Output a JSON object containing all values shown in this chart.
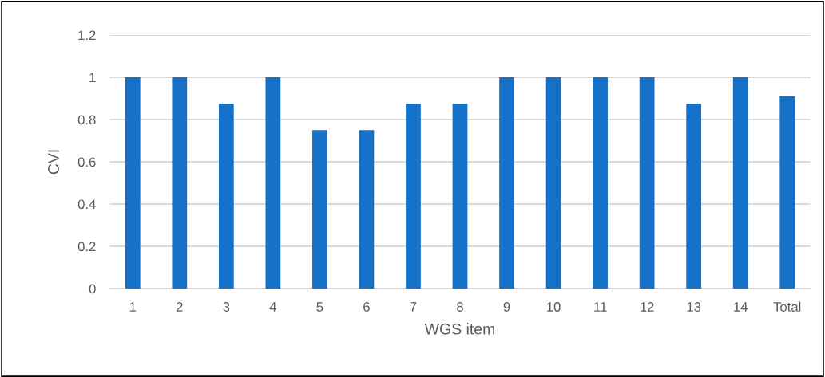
{
  "chart_data": {
    "type": "bar",
    "xlabel": "WGS item",
    "ylabel": "CVI",
    "categories": [
      "1",
      "2",
      "3",
      "4",
      "5",
      "6",
      "7",
      "8",
      "9",
      "10",
      "11",
      "12",
      "13",
      "14",
      "Total"
    ],
    "values": [
      1,
      1,
      0.875,
      1,
      0.75,
      0.75,
      0.875,
      0.875,
      1,
      1,
      1,
      1,
      0.875,
      1,
      0.91
    ],
    "color": "#1570c8",
    "ylim": [
      0,
      1.2
    ],
    "yticks": [
      {
        "value": 0,
        "label": "0"
      },
      0.2,
      0.4,
      0.6,
      0.8,
      {
        "value": 1,
        "label": "1"
      },
      1.2
    ],
    "grid": "y"
  }
}
